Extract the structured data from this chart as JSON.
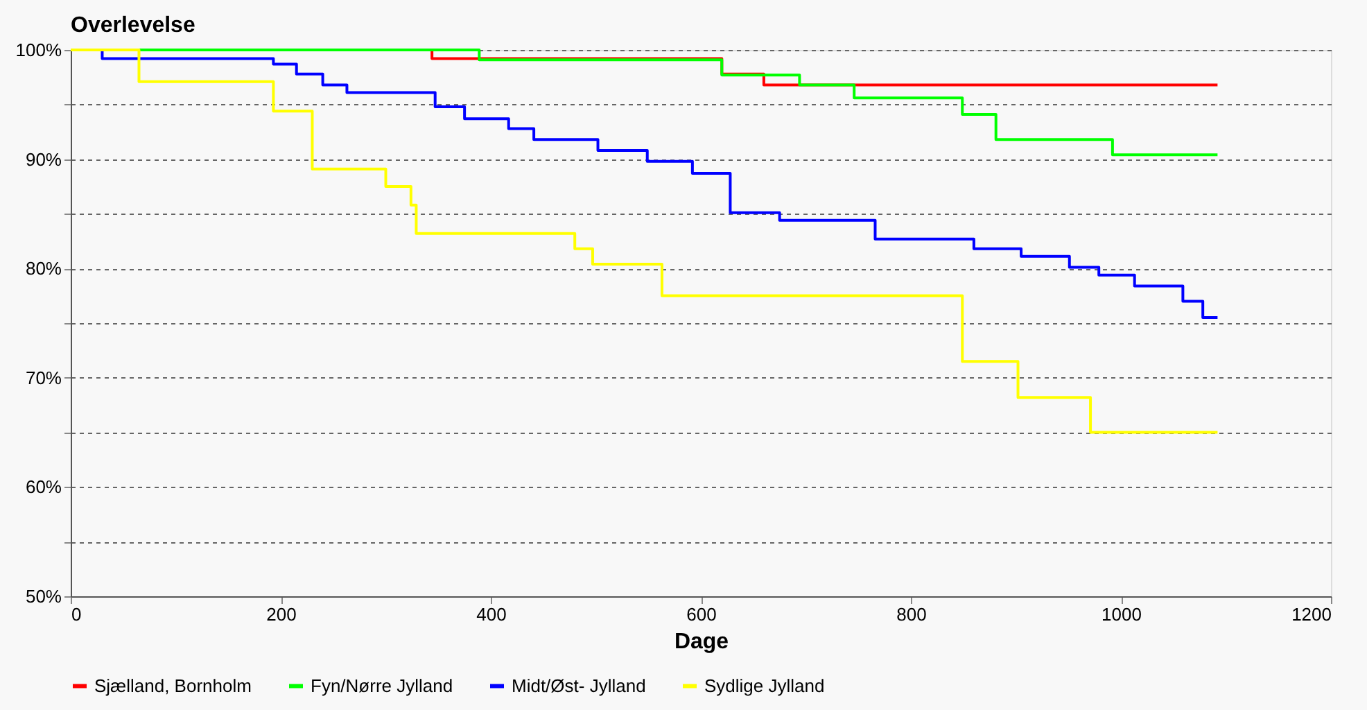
{
  "chart_data": {
    "type": "step",
    "title": "Overlevelse",
    "xlabel": "Dage",
    "xlim": [
      0,
      1200
    ],
    "xticks": [
      0,
      200,
      400,
      600,
      800,
      1000,
      1200
    ],
    "ylim": [
      50,
      100
    ],
    "yticks": [
      {
        "value": 50,
        "label": "50%"
      },
      {
        "value": 55,
        "label": null
      },
      {
        "value": 60,
        "label": "60%"
      },
      {
        "value": 65,
        "label": null
      },
      {
        "value": 70,
        "label": "70%"
      },
      {
        "value": 75,
        "label": null
      },
      {
        "value": 80,
        "label": "80%"
      },
      {
        "value": 85,
        "label": null
      },
      {
        "value": 90,
        "label": "90%"
      },
      {
        "value": 95,
        "label": null
      },
      {
        "value": 100,
        "label": "100%"
      }
    ],
    "grid": "y",
    "legend": "bottom",
    "line_style": "solid",
    "marker": "none",
    "series": [
      {
        "name": "Sjælland, Bornholm",
        "color": "#ff0000",
        "x": [
          0,
          344,
          620,
          660,
          1092
        ],
        "values": [
          100,
          99.2,
          97.8,
          96.8,
          96.8
        ]
      },
      {
        "name": "Fyn/Nørre Jylland",
        "color": "#00ff00",
        "x": [
          0,
          389,
          620,
          694,
          746,
          849,
          881,
          992,
          1092
        ],
        "values": [
          100,
          99.1,
          97.7,
          96.8,
          95.6,
          94.1,
          91.8,
          90.4,
          90.4
        ]
      },
      {
        "name": "Midt/Øst- Jylland",
        "color": "#0000ff",
        "x": [
          0,
          30,
          193,
          215,
          240,
          263,
          347,
          375,
          417,
          441,
          502,
          549,
          592,
          628,
          675,
          766,
          860,
          905,
          951,
          979,
          1013,
          1059,
          1078,
          1092
        ],
        "values": [
          100,
          99.2,
          98.7,
          97.8,
          96.8,
          96.1,
          94.8,
          93.7,
          92.8,
          91.8,
          90.8,
          89.8,
          88.7,
          85.1,
          84.4,
          82.7,
          81.8,
          81.1,
          80.1,
          79.4,
          78.4,
          77.0,
          75.5,
          75.5
        ]
      },
      {
        "name": "Sydlige Jylland",
        "color": "#ffff00",
        "x": [
          0,
          65,
          193,
          230,
          300,
          324,
          329,
          480,
          497,
          563,
          849,
          902,
          971,
          1092
        ],
        "values": [
          100,
          97.1,
          94.4,
          89.1,
          87.5,
          85.8,
          83.2,
          81.8,
          80.4,
          77.5,
          71.5,
          68.2,
          65.0,
          65.0
        ]
      }
    ]
  }
}
